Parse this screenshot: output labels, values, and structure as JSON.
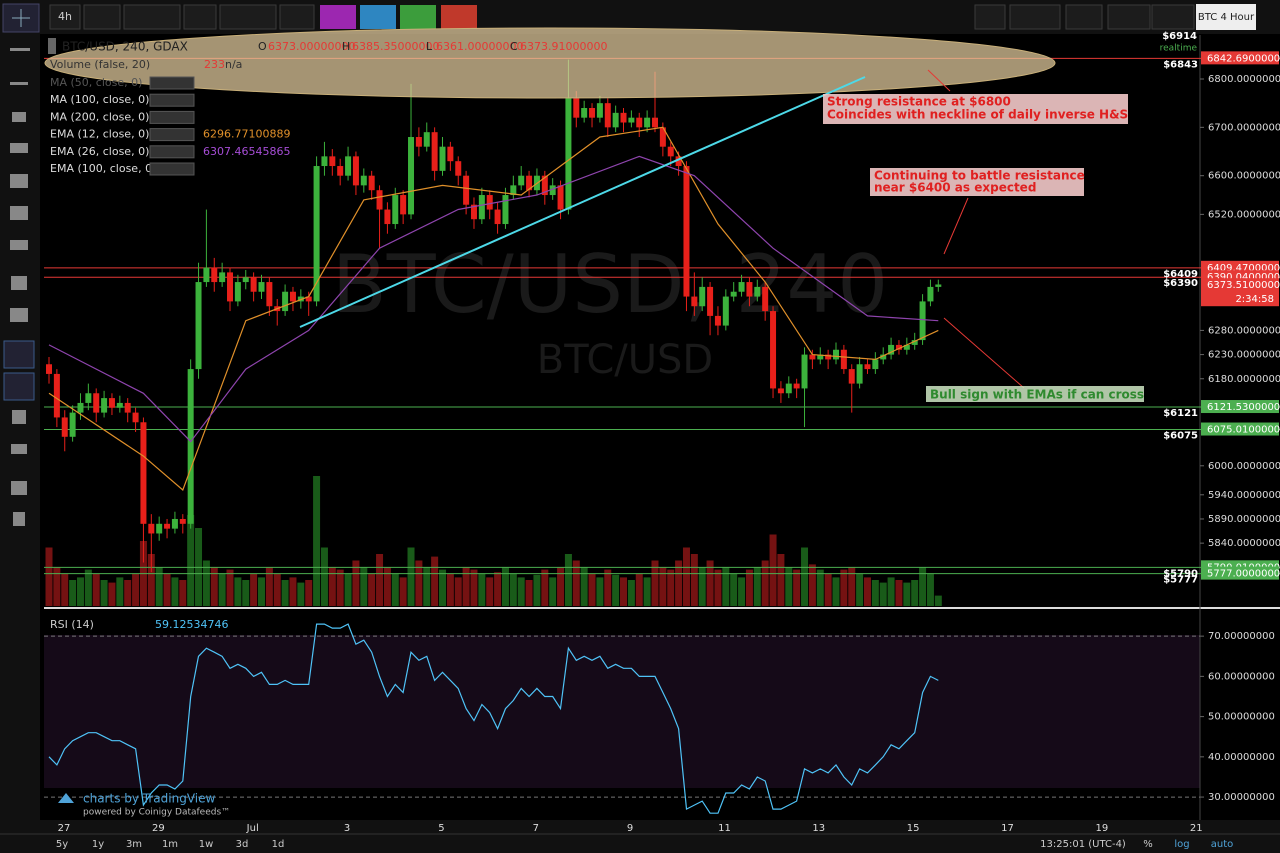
{
  "toolbar": {
    "interval": "4h",
    "symbol_label": "BTC 4 Hour"
  },
  "legend": {
    "symbol": "BTC/USD, 240, GDAX",
    "ohlc": [
      {
        "label": "O",
        "value": "6373.00000000"
      },
      {
        "label": "H",
        "value": "6385.35000000"
      },
      {
        "label": "L",
        "value": "6361.00000000"
      },
      {
        "label": "C",
        "value": "6373.91000000"
      }
    ],
    "volume": "Volume (false, 20)",
    "volume_value": "233",
    "volume_na": "n/a",
    "studies": [
      {
        "name": "MA (50, close, 0)"
      },
      {
        "name": "MA (100, close, 0)"
      },
      {
        "name": "MA (200, close, 0)"
      },
      {
        "name": "EMA (12, close, 0)",
        "value": "6296.77100889"
      },
      {
        "name": "EMA (26, close, 0)",
        "value": "6307.46545865"
      },
      {
        "name": "EMA (100, close, 0)"
      }
    ]
  },
  "watermark": {
    "title": "BTC/USD, 240",
    "subtitle": "BTC/USD"
  },
  "chart": {
    "ylim": [
      5710,
      6891
    ],
    "price_ticks": [
      {
        "value": 6800,
        "label": "6800.00000000"
      },
      {
        "value": 6700,
        "label": "6700.00000000"
      },
      {
        "value": 6600,
        "label": "6600.00000000"
      },
      {
        "value": 6520,
        "label": "6520.00000000"
      },
      {
        "value": 6280,
        "label": "6280.00000000"
      },
      {
        "value": 6230,
        "label": "6230.00000000"
      },
      {
        "value": 6180,
        "label": "6180.00000000"
      },
      {
        "value": 6000,
        "label": "6000.00000000"
      },
      {
        "value": 5940,
        "label": "5940.00000000"
      },
      {
        "value": 5890,
        "label": "5890.00000000"
      },
      {
        "value": 5840,
        "label": "5840.00000000"
      }
    ],
    "top_tag": "$6914",
    "realtime": "realtime",
    "levels": [
      {
        "value": 6842.69,
        "label": "6842.69000000",
        "tag": "$6843",
        "color": "#e53935"
      },
      {
        "value": 6409.47,
        "label": "6409.47000000",
        "tag": "$6409",
        "color": "#e53935"
      },
      {
        "value": 6390.04,
        "label": "6390.04000000",
        "tag": "$6390",
        "color": "#e53935"
      },
      {
        "value": 6121.53,
        "label": "6121.53000000",
        "tag": "$6121",
        "color": "#4caf50"
      },
      {
        "value": 6075.01,
        "label": "6075.01000000",
        "tag": "$6075",
        "color": "#4caf50"
      },
      {
        "value": 5790.01,
        "label": "5790.01000000",
        "tag": "$5790",
        "color": "#4caf50"
      },
      {
        "value": 5777,
        "label": "5777.00000000",
        "tag": "$5777",
        "color": "#4caf50"
      }
    ],
    "last": {
      "value": 6373.51,
      "label": "6373.51000000",
      "countdown": "2:34:58"
    },
    "dates": [
      "27",
      "29",
      "Jul",
      "3",
      "5",
      "7",
      "9",
      "11",
      "13",
      "15",
      "17",
      "19",
      "21"
    ],
    "candles": [
      [
        6210,
        6225,
        6170,
        6190
      ],
      [
        6190,
        6200,
        6080,
        6100
      ],
      [
        6100,
        6115,
        6030,
        6060
      ],
      [
        6060,
        6125,
        6050,
        6110
      ],
      [
        6110,
        6150,
        6095,
        6130
      ],
      [
        6130,
        6170,
        6115,
        6150
      ],
      [
        6150,
        6160,
        6090,
        6110
      ],
      [
        6110,
        6155,
        6100,
        6140
      ],
      [
        6140,
        6150,
        6105,
        6120
      ],
      [
        6120,
        6145,
        6110,
        6130
      ],
      [
        6130,
        6140,
        6090,
        6110
      ],
      [
        6110,
        6120,
        6070,
        6090
      ],
      [
        6090,
        6100,
        5800,
        5880
      ],
      [
        5880,
        5900,
        5780,
        5860
      ],
      [
        5860,
        5895,
        5845,
        5880
      ],
      [
        5880,
        5890,
        5850,
        5870
      ],
      [
        5870,
        5905,
        5860,
        5890
      ],
      [
        5890,
        5900,
        5860,
        5880
      ],
      [
        5880,
        6220,
        5870,
        6200
      ],
      [
        6200,
        6420,
        6180,
        6380
      ],
      [
        6380,
        6530,
        6370,
        6410
      ],
      [
        6410,
        6430,
        6360,
        6380
      ],
      [
        6380,
        6420,
        6370,
        6400
      ],
      [
        6400,
        6410,
        6320,
        6340
      ],
      [
        6340,
        6395,
        6330,
        6380
      ],
      [
        6380,
        6405,
        6365,
        6390
      ],
      [
        6390,
        6400,
        6340,
        6360
      ],
      [
        6360,
        6395,
        6345,
        6380
      ],
      [
        6380,
        6390,
        6310,
        6330
      ],
      [
        6330,
        6345,
        6290,
        6320
      ],
      [
        6320,
        6375,
        6310,
        6360
      ],
      [
        6360,
        6370,
        6320,
        6340
      ],
      [
        6340,
        6365,
        6325,
        6350
      ],
      [
        6350,
        6360,
        6310,
        6340
      ],
      [
        6340,
        6640,
        6330,
        6620
      ],
      [
        6620,
        6670,
        6600,
        6640
      ],
      [
        6640,
        6655,
        6600,
        6620
      ],
      [
        6620,
        6635,
        6580,
        6600
      ],
      [
        6600,
        6660,
        6590,
        6640
      ],
      [
        6640,
        6650,
        6560,
        6580
      ],
      [
        6580,
        6615,
        6565,
        6600
      ],
      [
        6600,
        6610,
        6550,
        6570
      ],
      [
        6570,
        6580,
        6450,
        6530
      ],
      [
        6530,
        6545,
        6480,
        6500
      ],
      [
        6500,
        6575,
        6490,
        6560
      ],
      [
        6560,
        6570,
        6500,
        6520
      ],
      [
        6520,
        6790,
        6510,
        6680
      ],
      [
        6680,
        6700,
        6640,
        6660
      ],
      [
        6660,
        6710,
        6650,
        6690
      ],
      [
        6690,
        6700,
        6590,
        6610
      ],
      [
        6610,
        6680,
        6600,
        6660
      ],
      [
        6660,
        6670,
        6610,
        6630
      ],
      [
        6630,
        6640,
        6580,
        6600
      ],
      [
        6600,
        6610,
        6520,
        6540
      ],
      [
        6540,
        6555,
        6490,
        6510
      ],
      [
        6510,
        6575,
        6500,
        6560
      ],
      [
        6560,
        6570,
        6510,
        6530
      ],
      [
        6530,
        6545,
        6480,
        6500
      ],
      [
        6500,
        6575,
        6490,
        6560
      ],
      [
        6560,
        6600,
        6550,
        6580
      ],
      [
        6580,
        6620,
        6570,
        6600
      ],
      [
        6600,
        6610,
        6555,
        6570
      ],
      [
        6570,
        6615,
        6560,
        6600
      ],
      [
        6600,
        6610,
        6540,
        6560
      ],
      [
        6560,
        6595,
        6550,
        6580
      ],
      [
        6580,
        6590,
        6510,
        6530
      ],
      [
        6530,
        6840,
        6520,
        6760
      ],
      [
        6760,
        6775,
        6700,
        6720
      ],
      [
        6720,
        6755,
        6710,
        6740
      ],
      [
        6740,
        6750,
        6700,
        6720
      ],
      [
        6720,
        6765,
        6710,
        6750
      ],
      [
        6750,
        6760,
        6680,
        6700
      ],
      [
        6700,
        6745,
        6690,
        6730
      ],
      [
        6730,
        6740,
        6690,
        6710
      ],
      [
        6710,
        6735,
        6700,
        6720
      ],
      [
        6720,
        6730,
        6680,
        6700
      ],
      [
        6700,
        6735,
        6690,
        6720
      ],
      [
        6720,
        6815,
        6690,
        6700
      ],
      [
        6700,
        6710,
        6640,
        6660
      ],
      [
        6660,
        6670,
        6620,
        6640
      ],
      [
        6640,
        6650,
        6600,
        6620
      ],
      [
        6620,
        6630,
        6320,
        6350
      ],
      [
        6350,
        6400,
        6310,
        6330
      ],
      [
        6330,
        6390,
        6320,
        6370
      ],
      [
        6370,
        6380,
        6270,
        6310
      ],
      [
        6310,
        6330,
        6270,
        6290
      ],
      [
        6290,
        6365,
        6280,
        6350
      ],
      [
        6350,
        6380,
        6340,
        6360
      ],
      [
        6360,
        6395,
        6350,
        6380
      ],
      [
        6380,
        6390,
        6330,
        6350
      ],
      [
        6350,
        6385,
        6340,
        6370
      ],
      [
        6370,
        6380,
        6300,
        6320
      ],
      [
        6320,
        6330,
        6140,
        6160
      ],
      [
        6160,
        6175,
        6130,
        6150
      ],
      [
        6150,
        6185,
        6140,
        6170
      ],
      [
        6170,
        6180,
        6140,
        6160
      ],
      [
        6160,
        6245,
        6080,
        6230
      ],
      [
        6230,
        6240,
        6200,
        6220
      ],
      [
        6220,
        6245,
        6210,
        6230
      ],
      [
        6230,
        6240,
        6200,
        6220
      ],
      [
        6220,
        6255,
        6210,
        6240
      ],
      [
        6240,
        6250,
        6190,
        6200
      ],
      [
        6200,
        6210,
        6110,
        6170
      ],
      [
        6170,
        6225,
        6160,
        6210
      ],
      [
        6210,
        6220,
        6190,
        6200
      ],
      [
        6200,
        6235,
        6190,
        6220
      ],
      [
        6220,
        6245,
        6210,
        6230
      ],
      [
        6230,
        6265,
        6220,
        6250
      ],
      [
        6250,
        6260,
        6230,
        6240
      ],
      [
        6240,
        6265,
        6230,
        6250
      ],
      [
        6250,
        6275,
        6240,
        6260
      ],
      [
        6260,
        6355,
        6250,
        6340
      ],
      [
        6340,
        6385,
        6330,
        6370
      ],
      [
        6370,
        6385,
        6360,
        6375
      ]
    ],
    "volume": [
      45,
      30,
      25,
      20,
      22,
      28,
      25,
      20,
      18,
      22,
      20,
      25,
      50,
      40,
      30,
      25,
      22,
      20,
      70,
      60,
      35,
      30,
      25,
      28,
      22,
      20,
      25,
      22,
      30,
      25,
      20,
      22,
      18,
      20,
      100,
      45,
      30,
      28,
      25,
      35,
      30,
      25,
      40,
      30,
      25,
      22,
      45,
      35,
      30,
      38,
      28,
      25,
      22,
      30,
      28,
      25,
      22,
      26,
      30,
      25,
      22,
      20,
      24,
      28,
      22,
      30,
      40,
      35,
      30,
      25,
      22,
      28,
      24,
      22,
      20,
      25,
      22,
      35,
      30,
      28,
      35,
      45,
      40,
      30,
      35,
      28,
      30,
      25,
      22,
      28,
      30,
      35,
      55,
      40,
      30,
      28,
      45,
      32,
      28,
      25,
      22,
      28,
      30,
      25,
      22,
      20,
      18,
      22,
      20,
      18,
      20,
      30,
      25,
      8
    ],
    "ema12": {
      "color": "#e0902a",
      "x": [
        0,
        12,
        17,
        25,
        33,
        40,
        50,
        60,
        70,
        78,
        85,
        91,
        97,
        105,
        113
      ],
      "values": [
        6150,
        6020,
        5950,
        6300,
        6350,
        6550,
        6580,
        6560,
        6680,
        6700,
        6500,
        6380,
        6230,
        6220,
        6280
      ]
    },
    "ema26": {
      "color": "#8e44ad",
      "x": [
        0,
        12,
        18,
        25,
        33,
        42,
        52,
        62,
        75,
        82,
        92,
        104,
        113
      ],
      "values": [
        6250,
        6150,
        6050,
        6200,
        6280,
        6450,
        6530,
        6560,
        6640,
        6600,
        6450,
        6310,
        6300
      ]
    }
  },
  "rsi": {
    "label": "RSI (14)",
    "value": "59.12534746",
    "color": "#4fc3f7",
    "ylim": [
      24.3,
      76
    ],
    "ticks": [
      {
        "value": 70,
        "label": "70.00000000"
      },
      {
        "value": 60,
        "label": "60.00000000"
      },
      {
        "value": 50,
        "label": "50.00000000"
      },
      {
        "value": 40,
        "label": "40.00000000"
      },
      {
        "value": 30,
        "label": "30.00000000"
      }
    ],
    "band": [
      30,
      70
    ],
    "values": [
      40,
      38,
      42,
      44,
      45,
      46,
      46,
      45,
      44,
      44,
      43,
      42,
      28,
      31,
      33,
      33,
      32,
      34,
      55,
      65,
      67,
      66,
      65,
      62,
      63,
      62,
      60,
      61,
      58,
      58,
      59,
      58,
      58,
      58,
      73,
      73,
      72,
      72,
      73,
      68,
      69,
      66,
      60,
      55,
      58,
      56,
      66,
      64,
      65,
      59,
      61,
      59,
      57,
      52,
      49,
      53,
      51,
      47,
      52,
      54,
      57,
      55,
      57,
      55,
      55,
      52,
      67,
      64,
      65,
      64,
      65,
      62,
      63,
      62,
      62,
      60,
      60,
      60,
      56,
      52,
      47,
      27,
      28,
      29,
      26,
      26,
      31,
      31,
      33,
      32,
      35,
      34,
      27,
      27,
      28,
      29,
      37,
      36,
      37,
      36,
      38,
      35,
      33,
      37,
      36,
      38,
      40,
      43,
      42,
      44,
      46,
      56,
      60,
      59
    ]
  },
  "annotations": [
    {
      "text": [
        "Strong resistance at $6800",
        "Coincides with neckline of daily inverse H&S"
      ]
    },
    {
      "text": [
        "Continuing to battle resistance",
        "near $6400 as expected"
      ]
    },
    {
      "text": [
        "Bull sign with EMAs if can cross"
      ]
    }
  ],
  "branding": {
    "name": "charts by TradingView",
    "powered": "powered by Coinigy Datafeeds™"
  },
  "bottom_bar": {
    "ranges": [
      "5y",
      "1y",
      "3m",
      "1m",
      "1w",
      "3d",
      "1d"
    ],
    "clock": "13:25:01 (UTC-4)",
    "options": [
      "%",
      "log",
      "auto"
    ]
  }
}
